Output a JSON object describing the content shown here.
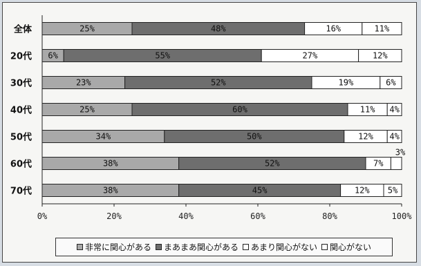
{
  "chart_data": {
    "type": "bar",
    "orientation": "horizontal",
    "stacked": true,
    "percent": true,
    "categories": [
      "全体",
      "20代",
      "30代",
      "40代",
      "50代",
      "60代",
      "70代"
    ],
    "series": [
      {
        "name": "非常に関心がある",
        "color": "#a9a9a9",
        "values": [
          25,
          6,
          23,
          25,
          34,
          38,
          38
        ]
      },
      {
        "name": "まあまあ関心がある",
        "color": "#6e6e6e",
        "values": [
          48,
          55,
          52,
          60,
          50,
          52,
          45
        ]
      },
      {
        "name": "あまり関心がない",
        "color": "#ffffff",
        "values": [
          16,
          27,
          19,
          11,
          12,
          7,
          12
        ]
      },
      {
        "name": "関心がない",
        "color": "#ffffff",
        "values": [
          11,
          12,
          6,
          4,
          4,
          3,
          5
        ]
      }
    ],
    "value_labels": [
      [
        "25%",
        "48%",
        "16%",
        "11%"
      ],
      [
        "6%",
        "55%",
        "27%",
        "12%"
      ],
      [
        "23%",
        "52%",
        "19%",
        "6%"
      ],
      [
        "25%",
        "60%",
        "11%",
        "4%"
      ],
      [
        "34%",
        "50%",
        "12%",
        "4%"
      ],
      [
        "38%",
        "52%",
        "7%",
        "3%"
      ],
      [
        "38%",
        "45%",
        "12%",
        "5%"
      ]
    ],
    "x_ticks": [
      "0%",
      "20%",
      "40%",
      "60%",
      "80%",
      "100%"
    ],
    "xlim": [
      0,
      100
    ],
    "grid": false,
    "legend_position": "bottom",
    "title": "",
    "xlabel": "",
    "ylabel": ""
  }
}
